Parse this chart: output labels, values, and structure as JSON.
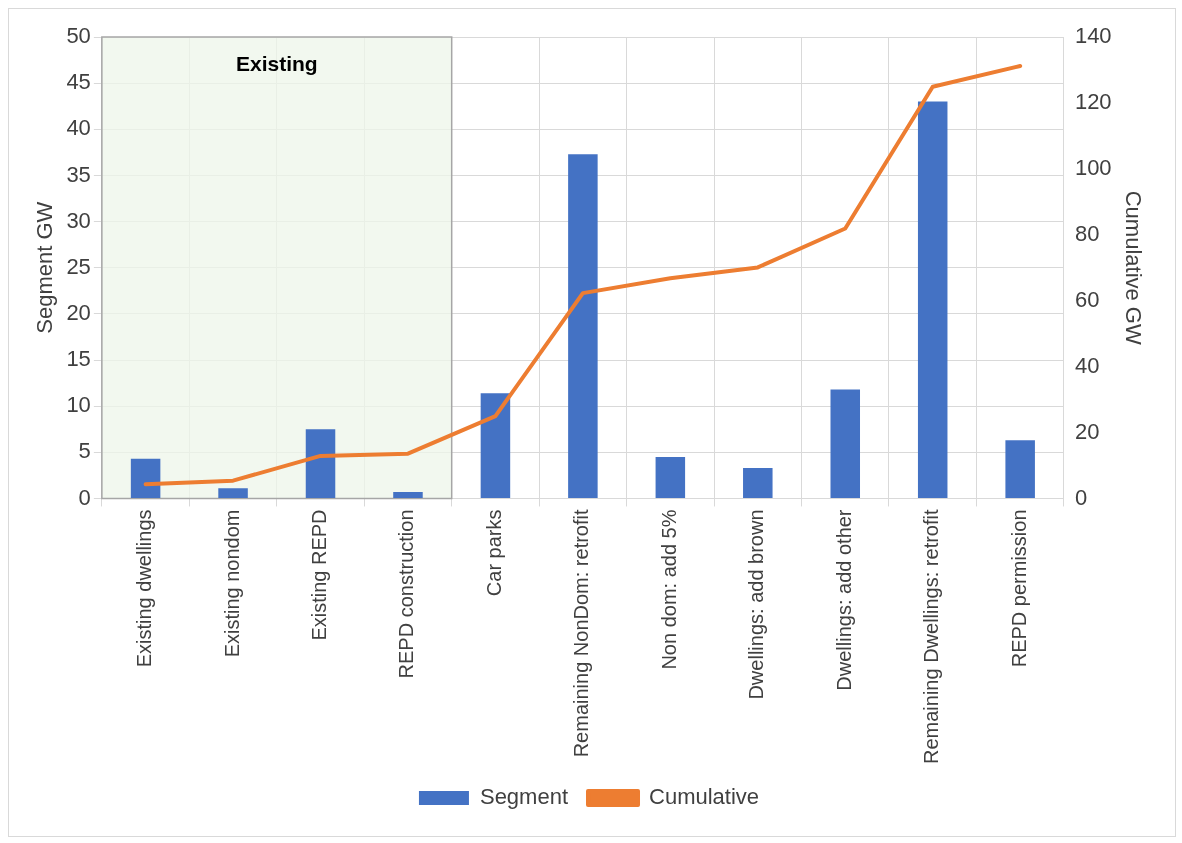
{
  "chart_data": {
    "type": "bar",
    "ylabel": "Segment GW",
    "y2label": "Cumulative GW",
    "categories": [
      "Existing dwellings",
      "Existing nondom",
      "Existing REPD",
      "REPD construction",
      "Car parks",
      "Remaining NonDom: retrofit",
      "Non dom: add 5%",
      "Dwellings: add brown",
      "Dwellings: add other",
      "Remaining Dwellings: retrofit",
      "REPD permission"
    ],
    "series": [
      {
        "name": "Segment",
        "color": "#4472c4",
        "values": [
          4.3,
          1.1,
          7.5,
          0.7,
          11.4,
          37.3,
          4.5,
          3.3,
          11.8,
          43.0,
          6.3
        ]
      },
      {
        "name": "Cumulative",
        "type": "line",
        "axis": "y2",
        "color": "#ed7d31",
        "values": [
          4.3,
          5.4,
          12.9,
          13.6,
          25.0,
          62.3,
          66.8,
          70.1,
          81.9,
          124.9,
          131.2
        ]
      }
    ],
    "ylim": [
      0,
      50
    ],
    "yticks": [
      0,
      5,
      10,
      15,
      20,
      25,
      30,
      35,
      40,
      45,
      50
    ],
    "y2lim": [
      0,
      140
    ],
    "y2ticks": [
      0,
      20,
      40,
      60,
      80,
      100,
      120,
      140
    ],
    "bands": [
      {
        "axis": "x",
        "from": "Existing dwellings",
        "to": "REPD construction",
        "label": "Existing",
        "color": "#eef5e9"
      }
    ],
    "grid": true,
    "legend": "bottom",
    "marker": "none",
    "line_style": "solid"
  }
}
